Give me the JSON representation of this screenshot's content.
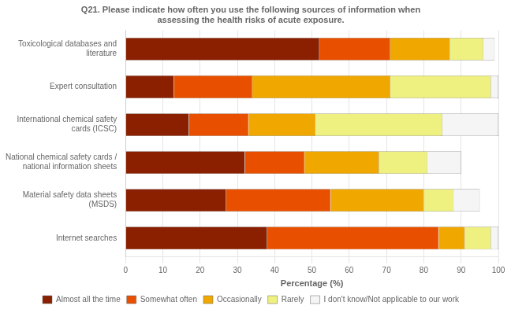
{
  "chart_data": {
    "type": "bar",
    "orientation": "horizontal",
    "stacked": true,
    "title": "Q21. Please indicate how often you use the following sources of information when\nassessing the health risks of acute exposure.",
    "categories": [
      "Toxicological databases and\nliterature",
      "Expert consultation",
      "International chemical safety\ncards (ICSC)",
      "National chemical safety cards /\nnational information sheets",
      "Material safety data sheets\n(MSDS)",
      "Internet searches"
    ],
    "series": [
      {
        "name": "Almost all the time",
        "color": "#8B2000",
        "values": [
          52,
          13,
          17,
          32,
          27,
          38
        ]
      },
      {
        "name": "Somewhat often",
        "color": "#E85000",
        "values": [
          19,
          21,
          16,
          16,
          28,
          46
        ]
      },
      {
        "name": "Occasionally",
        "color": "#F0A800",
        "values": [
          16,
          37,
          18,
          20,
          25,
          7
        ]
      },
      {
        "name": "Rarely",
        "color": "#EEF080",
        "values": [
          9,
          27,
          34,
          13,
          8,
          7
        ]
      },
      {
        "name": "I don't know/Not applicable to our work",
        "color": "#F5F5F5",
        "values": [
          3,
          2,
          15,
          9,
          7,
          2
        ]
      }
    ],
    "xlabel": "Percentage (%)",
    "xlim": [
      0,
      100
    ],
    "xticks": [
      0,
      10,
      20,
      30,
      40,
      50,
      60,
      70,
      80,
      90,
      100
    ],
    "grid": true,
    "legend": "bottom"
  }
}
